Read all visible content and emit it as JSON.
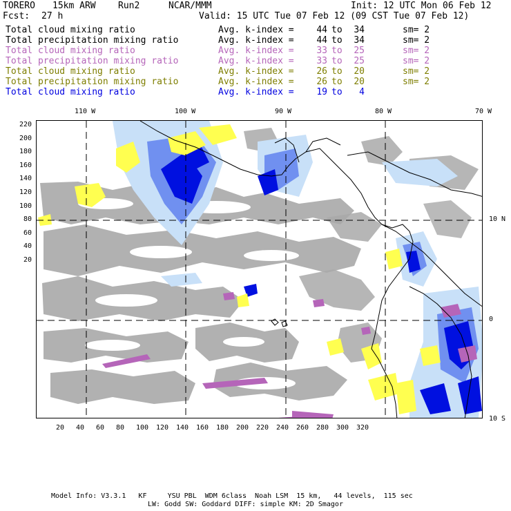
{
  "header": {
    "model": "TORERO",
    "resolution": "15km ARW",
    "run": "Run2",
    "org": "NCAR/MMM",
    "init": "Init: 12 UTC Mon 06 Feb 12",
    "fcst_label": "Fcst:",
    "fcst_value": "27 h",
    "valid": "Valid: 15 UTC Tue 07 Feb 12 (09 CST Tue 07 Feb 12)"
  },
  "legend": [
    {
      "label": "Total cloud mixing ratio",
      "avg": "Avg. k-index =",
      "k_from": "44",
      "to": "to",
      "k_to": "34",
      "sm": "sm= 2",
      "color": "#000000"
    },
    {
      "label": "Total precipitation mixing ratio",
      "avg": "Avg. k-index =",
      "k_from": "44",
      "to": "to",
      "k_to": "34",
      "sm": "sm= 2",
      "color": "#000000"
    },
    {
      "label": "Total cloud mixing ratio",
      "avg": "Avg. k-index =",
      "k_from": "33",
      "to": "to",
      "k_to": "25",
      "sm": "sm= 2",
      "color": "#b565b9"
    },
    {
      "label": "Total precipitation mixing ratio",
      "avg": "Avg. k-index =",
      "k_from": "33",
      "to": "to",
      "k_to": "25",
      "sm": "sm= 2",
      "color": "#b565b9"
    },
    {
      "label": "Total cloud mixing ratio",
      "avg": "Avg. k-index =",
      "k_from": "26",
      "to": "to",
      "k_to": "20",
      "sm": "sm= 2",
      "color": "#7e7e00"
    },
    {
      "label": "Total precipitation mixing ratio",
      "avg": "Avg. k-index =",
      "k_from": "26",
      "to": "to",
      "k_to": "20",
      "sm": "sm= 2",
      "color": "#7e7e00"
    },
    {
      "label": "Total cloud mixing ratio",
      "avg": "Avg. k-index =",
      "k_from": "19",
      "to": "to",
      "k_to": "4",
      "sm": "",
      "color": "#0000e0"
    }
  ],
  "map": {
    "top_lon_labels": [
      "110 W",
      "100 W",
      "90 W",
      "80 W",
      "70 W"
    ],
    "right_lat_labels": [
      "10 N",
      "0",
      "10 S"
    ],
    "y_ticks": [
      "220",
      "200",
      "180",
      "160",
      "140",
      "120",
      "100",
      "80",
      "60",
      "40",
      "20"
    ],
    "x_ticks": [
      "20",
      "40",
      "60",
      "80",
      "100",
      "120",
      "140",
      "160",
      "180",
      "200",
      "220",
      "240",
      "260",
      "280",
      "300",
      "320"
    ],
    "colors": {
      "cloud_gray": "#a9a9a9",
      "light_blue": "#c8e0f8",
      "mid_blue": "#7090f0",
      "deep_blue": "#0010e0",
      "yellow": "#ffff50",
      "purple": "#b565b9"
    }
  },
  "footer": {
    "line1": "Model Info: V3.3.1   KF     YSU PBL  WDM 6class  Noah LSM  15 km,   44 levels,  115 sec",
    "line2": "LW: Godd SW: Goddard DIFF: simple KM: 2D Smagor"
  }
}
